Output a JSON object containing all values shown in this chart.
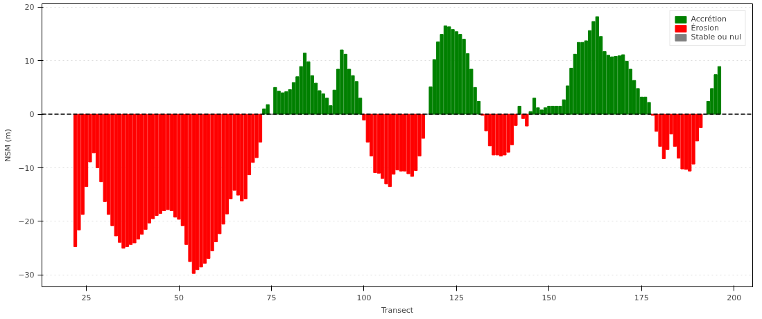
{
  "chart_data": {
    "type": "bar",
    "xlabel": "Transect",
    "ylabel": "NSM (m)",
    "series": [
      {
        "name": "Accrétion",
        "color": "#008000",
        "x": [
          73,
          74,
          76,
          77,
          78,
          79,
          80,
          81,
          82,
          83,
          84,
          85,
          86,
          87,
          88,
          89,
          90,
          91,
          92,
          93,
          94,
          95,
          96,
          97,
          98,
          99,
          118,
          119,
          120,
          121,
          122,
          123,
          124,
          125,
          126,
          127,
          128,
          129,
          130,
          131,
          142,
          145,
          146,
          147,
          148,
          149,
          150,
          151,
          152,
          153,
          154,
          155,
          156,
          157,
          158,
          159,
          160,
          161,
          162,
          163,
          164,
          165,
          166,
          167,
          168,
          169,
          170,
          171,
          172,
          173,
          174,
          175,
          176,
          177,
          193,
          194,
          195,
          196
        ],
        "values": [
          1.0,
          1.8,
          5.0,
          4.3,
          4.0,
          4.2,
          4.6,
          5.9,
          7.0,
          8.9,
          11.4,
          9.8,
          7.2,
          5.8,
          4.4,
          3.8,
          3.0,
          1.6,
          4.5,
          8.4,
          12.0,
          11.2,
          8.4,
          7.2,
          6.1,
          3.0,
          5.1,
          10.2,
          13.5,
          14.9,
          16.5,
          16.3,
          15.8,
          15.4,
          14.9,
          14.0,
          11.3,
          8.4,
          5.0,
          2.4,
          1.5,
          0.5,
          3.0,
          1.2,
          0.8,
          1.2,
          1.5,
          1.5,
          1.5,
          1.5,
          2.7,
          5.3,
          8.6,
          11.2,
          13.4,
          13.4,
          13.7,
          15.6,
          17.3,
          18.2,
          14.5,
          11.7,
          11.0,
          10.7,
          10.8,
          10.9,
          11.1,
          9.9,
          8.4,
          6.3,
          4.8,
          3.2,
          3.2,
          2.2,
          2.4,
          4.8,
          7.4,
          8.9
        ]
      },
      {
        "name": "Érosion",
        "color": "#ff0000",
        "x": [
          22,
          23,
          24,
          25,
          26,
          27,
          28,
          29,
          30,
          31,
          32,
          33,
          34,
          35,
          36,
          37,
          38,
          39,
          40,
          41,
          42,
          43,
          44,
          45,
          46,
          47,
          48,
          49,
          50,
          51,
          52,
          53,
          54,
          55,
          56,
          57,
          58,
          59,
          60,
          61,
          62,
          63,
          64,
          65,
          66,
          67,
          68,
          69,
          70,
          71,
          72,
          100,
          101,
          102,
          103,
          104,
          105,
          106,
          107,
          108,
          109,
          110,
          111,
          112,
          113,
          114,
          115,
          116,
          132,
          133,
          134,
          135,
          136,
          137,
          138,
          139,
          140,
          141,
          143,
          144,
          178,
          179,
          180,
          181,
          182,
          183,
          184,
          185,
          186,
          187,
          188,
          189,
          190,
          191
        ],
        "values": [
          -24.7,
          -21.6,
          -18.7,
          -13.5,
          -8.9,
          -7.2,
          -10.0,
          -12.6,
          -16.3,
          -18.7,
          -20.8,
          -22.7,
          -23.9,
          -25.0,
          -24.7,
          -24.3,
          -24.0,
          -23.3,
          -22.4,
          -21.5,
          -20.3,
          -19.5,
          -18.9,
          -18.5,
          -18.0,
          -17.8,
          -18.0,
          -19.2,
          -19.6,
          -20.8,
          -24.3,
          -27.5,
          -29.7,
          -29.0,
          -28.5,
          -27.8,
          -26.9,
          -25.5,
          -23.8,
          -22.3,
          -20.5,
          -18.6,
          -15.8,
          -14.2,
          -15.1,
          -16.2,
          -15.8,
          -11.3,
          -9.0,
          -8.1,
          -5.2,
          -1.1,
          -5.2,
          -7.8,
          -10.9,
          -11.0,
          -12.0,
          -13.0,
          -13.5,
          -11.2,
          -10.4,
          -10.6,
          -10.6,
          -11.1,
          -11.6,
          -10.5,
          -7.8,
          -4.5,
          -0.2,
          -3.1,
          -5.9,
          -7.6,
          -7.6,
          -7.8,
          -7.6,
          -7.1,
          -5.7,
          -2.1,
          -0.8,
          -2.2,
          -0.2,
          -3.2,
          -6.0,
          -8.3,
          -6.6,
          -3.7,
          -6.0,
          -8.2,
          -10.2,
          -10.3,
          -10.6,
          -9.3,
          -5.0,
          -2.5
        ]
      },
      {
        "name": "Stable ou nul",
        "color": "#808080",
        "x": [
          75,
          117,
          192
        ],
        "values": [
          0,
          0,
          0
        ]
      }
    ],
    "xlim": [
      13,
      205
    ],
    "ylim": [
      -32.2,
      20.6
    ],
    "xticks": [
      25,
      50,
      75,
      100,
      125,
      150,
      175,
      200
    ],
    "yticks": [
      -30,
      -20,
      -10,
      0,
      10,
      20
    ],
    "ref_lines": [
      {
        "axis": "y",
        "value": 0,
        "label": null,
        "color": "#000000",
        "line_style": "dashed"
      }
    ],
    "grid": "y",
    "legend": "top right"
  }
}
